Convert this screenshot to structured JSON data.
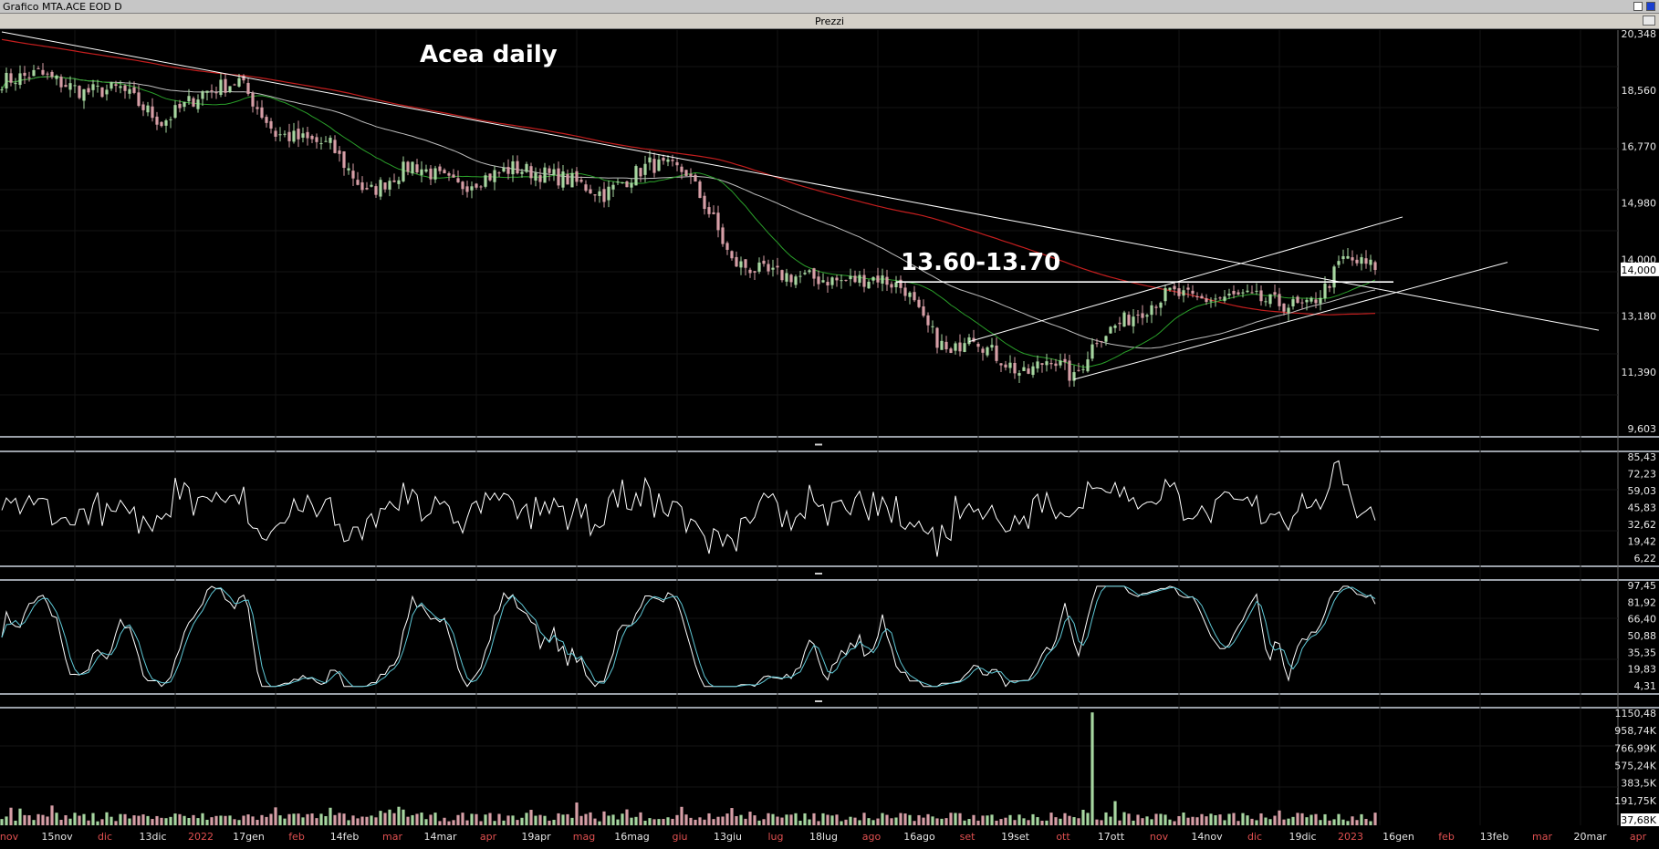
{
  "window": {
    "title": "Grafico MTA.ACE EOD D",
    "panel_label": "Prezzi"
  },
  "colors": {
    "background": "#000000",
    "up_candle": "#a6d6a0",
    "down_candle": "#d69ea6",
    "sma_long": "#c41e1e",
    "sma_mid": "#bfbfbf",
    "sma_short": "#2aa02a",
    "stoch_k": "#ffffff",
    "stoch_d": "#5fc8d6",
    "grid": "#141414"
  },
  "chart_data": [
    {
      "id": "price",
      "type": "candlestick",
      "title": "Acea daily",
      "annotation": "13.60-13.70",
      "ylim": [
        9.603,
        20.348
      ],
      "y_ticks": [
        "20,348",
        "18,560",
        "16,770",
        "14,980",
        "14,000",
        "13,180",
        "11,390",
        "9,603"
      ],
      "last_value": "14,000",
      "x_labels": [
        "nov",
        "15nov",
        "dic",
        "13dic",
        "2022",
        "17gen",
        "feb",
        "14feb",
        "mar",
        "14mar",
        "apr",
        "19apr",
        "mag",
        "16mag",
        "giu",
        "13giu",
        "lug",
        "18lug",
        "ago",
        "16ago",
        "set",
        "19set",
        "ott",
        "17ott",
        "nov",
        "14nov",
        "dic",
        "19dic",
        "2023",
        "16gen",
        "feb",
        "13feb",
        "mar",
        "20mar",
        "apr"
      ],
      "anchors": [
        {
          "i": 0,
          "v": 19.0
        },
        {
          "i": 8,
          "v": 19.2
        },
        {
          "i": 18,
          "v": 18.7
        },
        {
          "i": 26,
          "v": 18.8
        },
        {
          "i": 35,
          "v": 17.9
        },
        {
          "i": 44,
          "v": 18.7
        },
        {
          "i": 52,
          "v": 19.0
        },
        {
          "i": 60,
          "v": 17.6
        },
        {
          "i": 72,
          "v": 17.3
        },
        {
          "i": 80,
          "v": 16.0
        },
        {
          "i": 90,
          "v": 16.8
        },
        {
          "i": 100,
          "v": 16.2
        },
        {
          "i": 112,
          "v": 16.7
        },
        {
          "i": 124,
          "v": 16.4
        },
        {
          "i": 132,
          "v": 16.0
        },
        {
          "i": 142,
          "v": 16.8
        },
        {
          "i": 150,
          "v": 16.6
        },
        {
          "i": 156,
          "v": 15.3
        },
        {
          "i": 160,
          "v": 14.2
        },
        {
          "i": 168,
          "v": 13.9
        },
        {
          "i": 176,
          "v": 13.8
        },
        {
          "i": 184,
          "v": 13.7
        },
        {
          "i": 192,
          "v": 13.8
        },
        {
          "i": 198,
          "v": 13.5
        },
        {
          "i": 202,
          "v": 12.6
        },
        {
          "i": 208,
          "v": 11.7
        },
        {
          "i": 212,
          "v": 12.4
        },
        {
          "i": 216,
          "v": 11.9
        },
        {
          "i": 224,
          "v": 11.2
        },
        {
          "i": 230,
          "v": 11.7
        },
        {
          "i": 235,
          "v": 11.1
        },
        {
          "i": 240,
          "v": 12.2
        },
        {
          "i": 248,
          "v": 12.8
        },
        {
          "i": 256,
          "v": 13.4
        },
        {
          "i": 262,
          "v": 13.2
        },
        {
          "i": 272,
          "v": 13.3
        },
        {
          "i": 280,
          "v": 13.1
        },
        {
          "i": 286,
          "v": 13.0
        },
        {
          "i": 290,
          "v": 13.5
        },
        {
          "i": 294,
          "v": 14.3
        },
        {
          "i": 300,
          "v": 14.1
        }
      ],
      "lines": {
        "long_downtrend": [
          [
            0,
            20.3
          ],
          [
            350,
            12.4
          ]
        ],
        "white_level": [
          [
            196,
            13.68
          ],
          [
            305,
            13.68
          ]
        ],
        "channel_lower": [
          [
            235,
            11.1
          ],
          [
            330,
            14.2
          ]
        ],
        "channel_upper": [
          [
            212,
            12.1
          ],
          [
            307,
            15.4
          ]
        ]
      }
    },
    {
      "id": "rsi",
      "type": "line",
      "ylim": [
        3,
        90
      ],
      "y_ticks": [
        "85,43",
        "72,23",
        "59,03",
        "45,83",
        "32,62",
        "19,42",
        "6,22"
      ]
    },
    {
      "id": "stochastic",
      "type": "line",
      "ylim": [
        0,
        100
      ],
      "y_ticks": [
        "97,45",
        "81,92",
        "66,40",
        "50,88",
        "35,35",
        "19,83",
        "4,31"
      ]
    },
    {
      "id": "volume",
      "type": "bar",
      "ylim": [
        0,
        1180
      ],
      "y_ticks": [
        "1150,48",
        "958,74K",
        "766,99K",
        "575,24K",
        "383,5K",
        "191,75K",
        "37,68K"
      ],
      "last_value": "37,68K",
      "spike": {
        "i": 239,
        "v": 1150
      }
    }
  ]
}
